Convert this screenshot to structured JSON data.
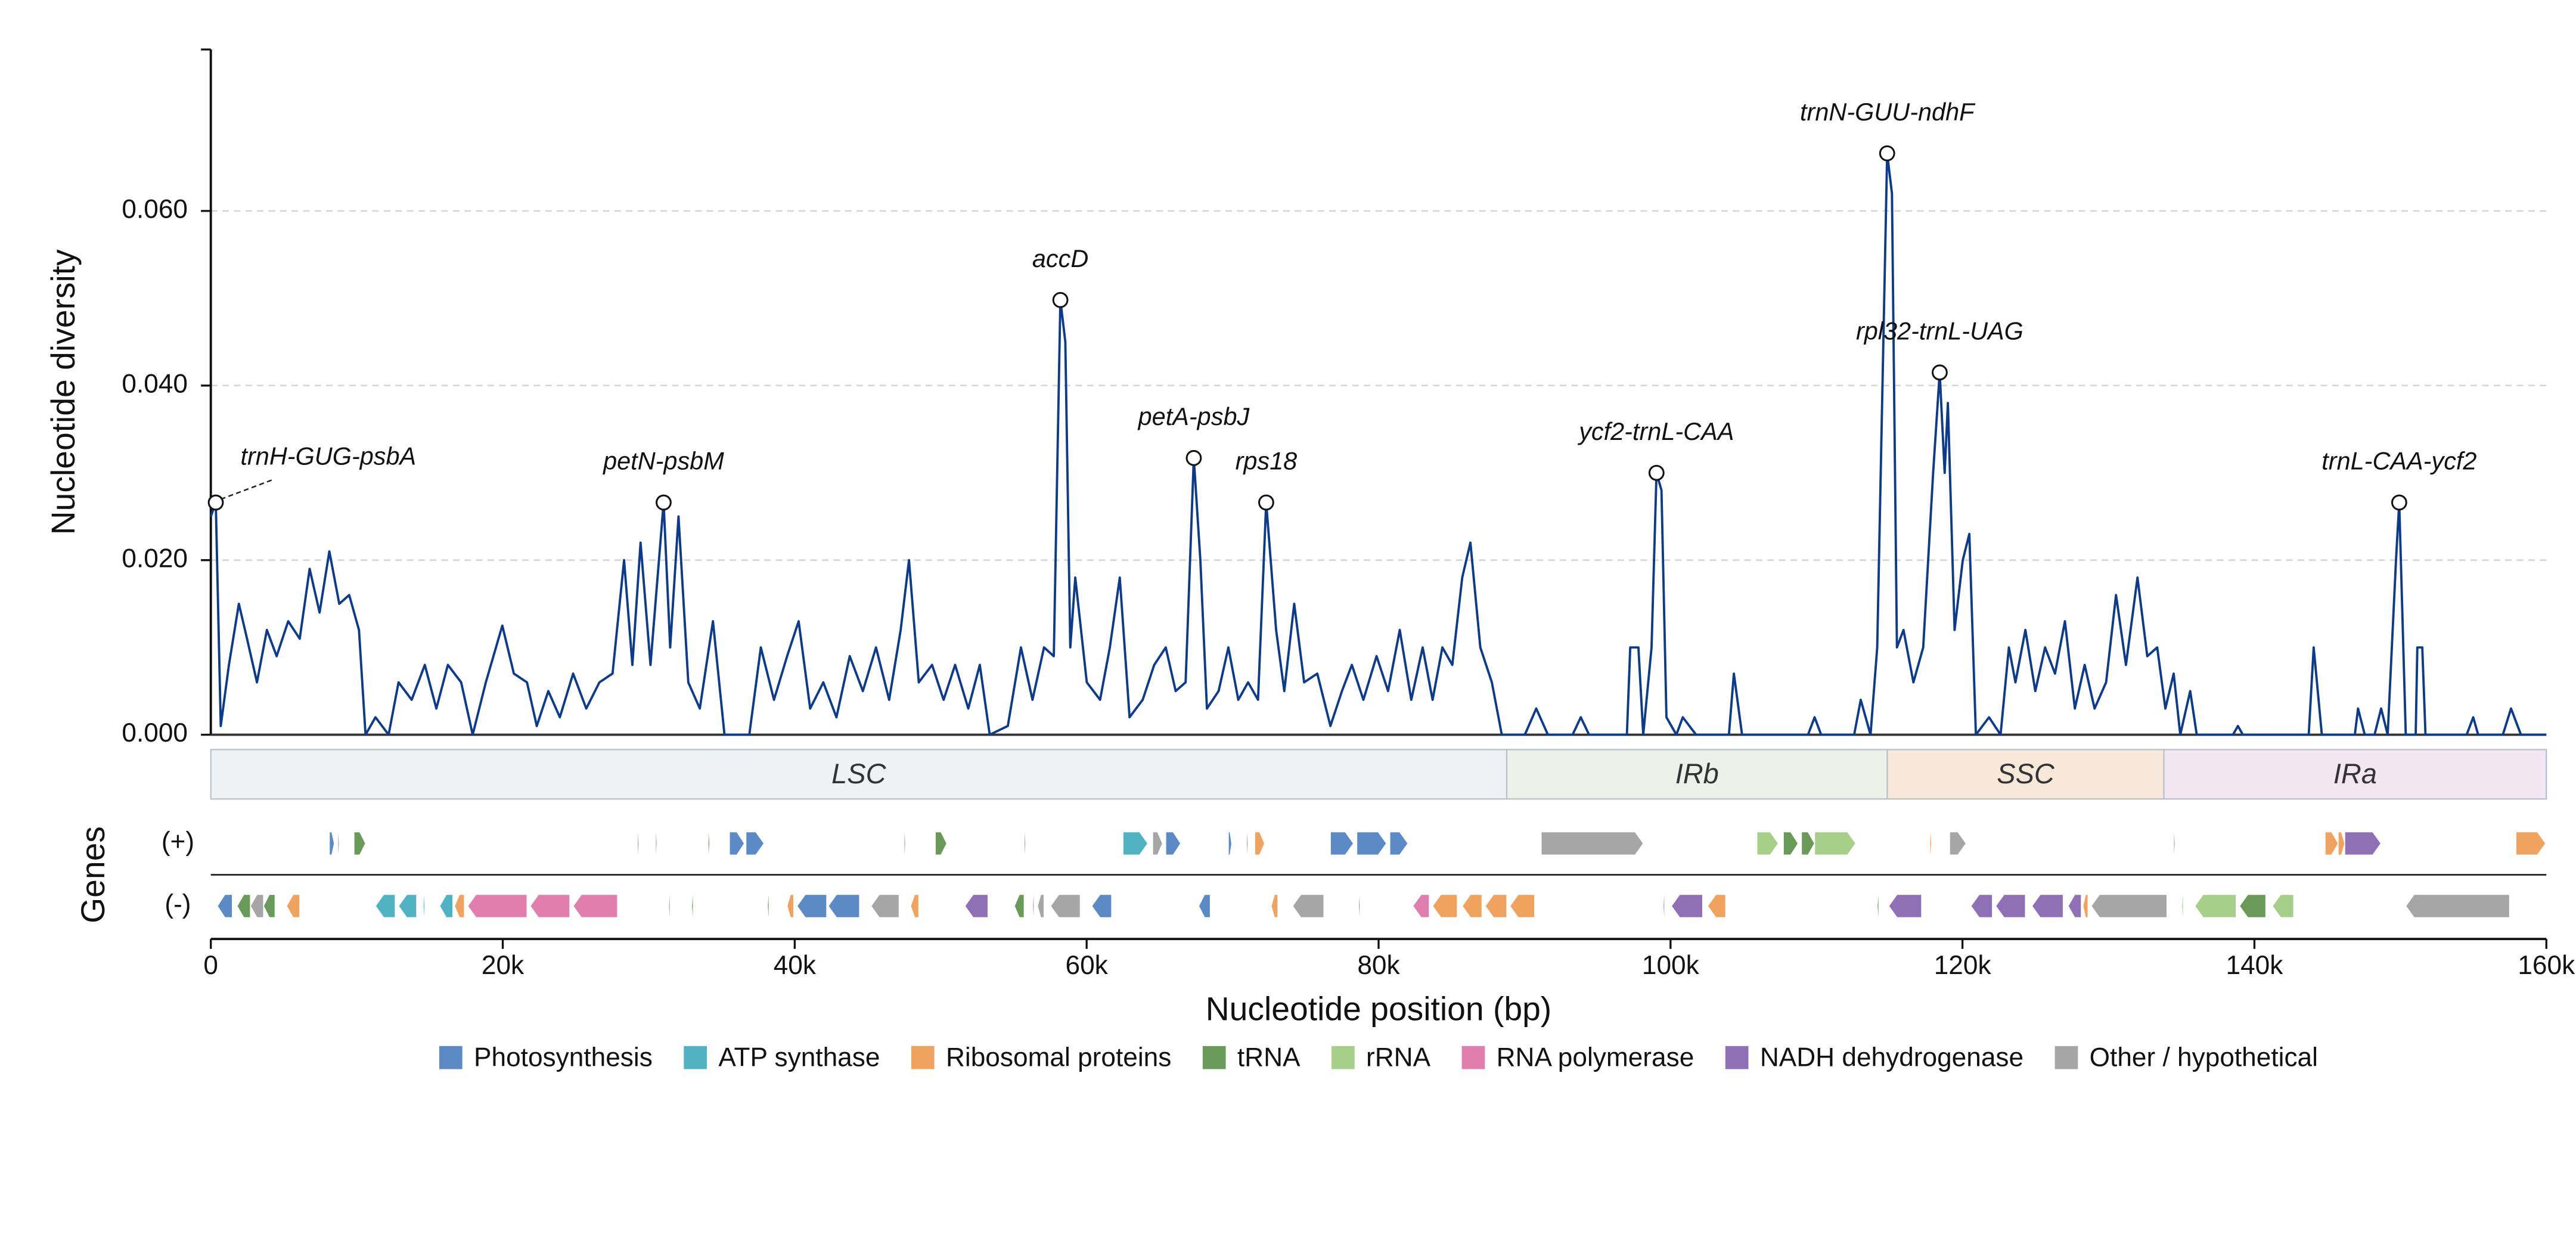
{
  "chart_data": {
    "type": "line",
    "xlabel": "Nucleotide position (bp)",
    "ylabel": "Nucleotide diversity",
    "color": "#0d3b8c",
    "grid": true,
    "xlim": [
      0,
      160000
    ],
    "ylim": [
      0,
      0.0785
    ],
    "xticks": [
      0,
      {
        "value": 20000,
        "label": "20k"
      },
      {
        "value": 40000,
        "label": "40k"
      },
      {
        "value": 60000,
        "label": "60k"
      },
      {
        "value": 80000,
        "label": "80k"
      },
      {
        "value": 100000,
        "label": "100k"
      },
      {
        "value": 120000,
        "label": "120k"
      },
      {
        "value": 140000,
        "label": "140k"
      },
      {
        "value": 160000,
        "label": "160k"
      }
    ],
    "yticks": [
      {
        "value": 0,
        "label": "0.000"
      },
      {
        "value": 0.02,
        "label": "0.020"
      },
      {
        "value": 0.04,
        "label": "0.040"
      },
      {
        "value": 0.06,
        "label": "0.060"
      }
    ],
    "x": [
      0,
      340,
      680,
      1240,
      1920,
      2480,
      3160,
      3840,
      4510,
      5300,
      6090,
      6770,
      7450,
      8120,
      8800,
      9480,
      10150,
      10600,
      11280,
      12180,
      12860,
      13760,
      14660,
      15450,
      16240,
      17150,
      17940,
      18840,
      19970,
      20760,
      21660,
      22330,
      23120,
      23910,
      24820,
      25720,
      26620,
      27520,
      28310,
      28880,
      29440,
      30120,
      31020,
      31470,
      32040,
      32710,
      33500,
      34400,
      35190,
      36890,
      37680,
      38580,
      39480,
      40270,
      41060,
      41960,
      42860,
      43770,
      44670,
      45570,
      46470,
      47260,
      47830,
      48500,
      49410,
      50200,
      50990,
      51890,
      52680,
      53360,
      54600,
      55500,
      56290,
      57080,
      57750,
      58200,
      58540,
      58880,
      59220,
      60010,
      60920,
      61590,
      62270,
      62940,
      63840,
      64630,
      65420,
      66100,
      66780,
      67340,
      67790,
      68240,
      69040,
      69710,
      70390,
      71060,
      71740,
      72300,
      72980,
      73540,
      74220,
      74900,
      75800,
      76700,
      77490,
      78170,
      78960,
      79860,
      80650,
      81450,
      82240,
      83020,
      83700,
      84370,
      85050,
      85730,
      86290,
      86970,
      87760,
      88440,
      89120,
      90020,
      90800,
      91600,
      93290,
      93850,
      94420,
      97010,
      97240,
      97800,
      98130,
      98700,
      99040,
      99380,
      99720,
      100400,
      100840,
      101750,
      104000,
      104340,
      104900,
      109420,
      109870,
      110320,
      112580,
      113030,
      113700,
      114160,
      114840,
      115170,
      115510,
      115960,
      116640,
      117310,
      117990,
      118440,
      118780,
      119000,
      119460,
      120020,
      120470,
      120920,
      121820,
      122610,
      123180,
      123630,
      124310,
      124990,
      125660,
      126340,
      127020,
      127700,
      128370,
      129050,
      129840,
      130520,
      131200,
      131990,
      132660,
      133340,
      133900,
      134470,
      134920,
      135600,
      136050,
      138530,
      138870,
      139210,
      143720,
      144060,
      144620,
      146880,
      147100,
      147560,
      148230,
      148680,
      149130,
      149700,
      149920,
      150370,
      151050,
      151160,
      151500,
      151720,
      154540,
      154990,
      155330,
      157020,
      157580,
      158260,
      160000
    ],
    "values": [
      0.025,
      0.0266,
      0.001,
      0.008,
      0.015,
      0.011,
      0.006,
      0.012,
      0.009,
      0.013,
      0.011,
      0.019,
      0.014,
      0.021,
      0.015,
      0.016,
      0.012,
      0.0,
      0.002,
      0.0,
      0.006,
      0.004,
      0.008,
      0.003,
      0.008,
      0.006,
      0.0,
      0.006,
      0.0125,
      0.007,
      0.006,
      0.001,
      0.005,
      0.002,
      0.007,
      0.003,
      0.006,
      0.007,
      0.02,
      0.008,
      0.022,
      0.008,
      0.0266,
      0.01,
      0.025,
      0.006,
      0.003,
      0.013,
      0.0,
      0.0,
      0.01,
      0.004,
      0.009,
      0.013,
      0.003,
      0.006,
      0.002,
      0.009,
      0.005,
      0.01,
      0.004,
      0.012,
      0.02,
      0.006,
      0.008,
      0.004,
      0.008,
      0.003,
      0.008,
      0.0,
      0.001,
      0.01,
      0.004,
      0.01,
      0.009,
      0.0498,
      0.045,
      0.01,
      0.018,
      0.006,
      0.004,
      0.01,
      0.018,
      0.002,
      0.004,
      0.008,
      0.01,
      0.005,
      0.006,
      0.0317,
      0.02,
      0.003,
      0.005,
      0.01,
      0.004,
      0.006,
      0.004,
      0.0266,
      0.012,
      0.005,
      0.015,
      0.006,
      0.007,
      0.001,
      0.005,
      0.008,
      0.004,
      0.009,
      0.005,
      0.012,
      0.004,
      0.01,
      0.004,
      0.01,
      0.008,
      0.018,
      0.022,
      0.01,
      0.006,
      0.0,
      0.0,
      0.0,
      0.003,
      0.0,
      0.0,
      0.002,
      0.0,
      0.0,
      0.01,
      0.01,
      0.0,
      0.01,
      0.03,
      0.028,
      0.002,
      0.0,
      0.002,
      0.0,
      0.0,
      0.007,
      0.0,
      0.0,
      0.002,
      0.0,
      0.0,
      0.004,
      0.0,
      0.01,
      0.0666,
      0.062,
      0.01,
      0.012,
      0.006,
      0.01,
      0.03,
      0.0415,
      0.03,
      0.038,
      0.012,
      0.02,
      0.023,
      0.0,
      0.002,
      0.0,
      0.01,
      0.006,
      0.012,
      0.005,
      0.01,
      0.007,
      0.013,
      0.003,
      0.008,
      0.003,
      0.006,
      0.016,
      0.008,
      0.018,
      0.009,
      0.01,
      0.003,
      0.007,
      0.0,
      0.005,
      0.0,
      0.0,
      0.001,
      0.0,
      0.0,
      0.01,
      0.0,
      0.0,
      0.003,
      0.0,
      0.0,
      0.003,
      0.0,
      0.02,
      0.0266,
      0.0,
      0.0,
      0.01,
      0.01,
      0.0,
      0.0,
      0.002,
      0.0,
      0.0,
      0.003,
      0.0,
      0.0
    ],
    "annotations": [
      {
        "text": "trnH-GUG-psbA",
        "x": 340,
        "y": 0.0266
      },
      {
        "text": "petN-psbM",
        "x": 31020,
        "y": 0.0266
      },
      {
        "text": "accD",
        "x": 58200,
        "y": 0.0498
      },
      {
        "text": "petA-psbJ",
        "x": 67340,
        "y": 0.0317
      },
      {
        "text": "rps18",
        "x": 72300,
        "y": 0.0266
      },
      {
        "text": "ycf2-trnL-CAA",
        "x": 99040,
        "y": 0.03
      },
      {
        "text": "trnN-GUU-ndhF",
        "x": 114840,
        "y": 0.0666
      },
      {
        "text": "rpl32-trnL-UAG",
        "x": 118440,
        "y": 0.0415
      },
      {
        "text": "trnL-CAA-ycf2",
        "x": 149920,
        "y": 0.0266
      }
    ],
    "regions": [
      {
        "name": "LSC",
        "start": 0,
        "end": 88780,
        "color": "#eef2f5"
      },
      {
        "name": "IRb",
        "start": 88780,
        "end": 114850,
        "color": "#ecf2ea"
      },
      {
        "name": "SSC",
        "start": 114850,
        "end": 133800,
        "color": "#f8e8da"
      },
      {
        "name": "IRa",
        "start": 133800,
        "end": 160000,
        "color": "#f1e6f1"
      }
    ],
    "genes_label": "Genes",
    "gene_categories": [
      {
        "name": "Photosynthesis",
        "color": "#5b8ac6"
      },
      {
        "name": "ATP synthase",
        "color": "#4fb3c4"
      },
      {
        "name": "Ribosomal proteins",
        "color": "#f0a35e"
      },
      {
        "name": "tRNA",
        "color": "#6a9a58"
      },
      {
        "name": "rRNA",
        "color": "#a8cf8a"
      },
      {
        "name": "RNA polymerase",
        "color": "#e07fae"
      },
      {
        "name": "NADH dehydrogenase",
        "color": "#8d70b5"
      },
      {
        "name": "Other / hypothetical",
        "color": "#a6a6a6"
      }
    ],
    "tracks": [
      {
        "label": "(+)",
        "genes": [
          {
            "start": 8120,
            "end": 8460,
            "category": "Photosynthesis"
          },
          {
            "start": 8690,
            "end": 8800,
            "category": "Other / hypothetical"
          },
          {
            "start": 9810,
            "end": 10600,
            "category": "tRNA"
          },
          {
            "start": 29220,
            "end": 29330,
            "category": "Other / hypothetical"
          },
          {
            "start": 30460,
            "end": 30570,
            "category": "Other / hypothetical"
          },
          {
            "start": 34070,
            "end": 34180,
            "category": "tRNA"
          },
          {
            "start": 35530,
            "end": 36550,
            "category": "Photosynthesis"
          },
          {
            "start": 36660,
            "end": 37900,
            "category": "Photosynthesis"
          },
          {
            "start": 47490,
            "end": 47600,
            "category": "Other / hypothetical"
          },
          {
            "start": 49630,
            "end": 50420,
            "category": "tRNA"
          },
          {
            "start": 55720,
            "end": 55830,
            "category": "Other / hypothetical"
          },
          {
            "start": 62490,
            "end": 64190,
            "category": "ATP synthase"
          },
          {
            "start": 64520,
            "end": 65200,
            "category": "Other / hypothetical"
          },
          {
            "start": 65420,
            "end": 66440,
            "category": "Photosynthesis"
          },
          {
            "start": 69710,
            "end": 69940,
            "category": "Photosynthesis"
          },
          {
            "start": 70950,
            "end": 71060,
            "category": "Other / hypothetical"
          },
          {
            "start": 71520,
            "end": 72190,
            "category": "Ribosomal proteins"
          },
          {
            "start": 76700,
            "end": 78280,
            "category": "Photosynthesis"
          },
          {
            "start": 78510,
            "end": 80540,
            "category": "Photosynthesis"
          },
          {
            "start": 80770,
            "end": 82010,
            "category": "Photosynthesis"
          },
          {
            "start": 91140,
            "end": 98140,
            "category": "Other / hypothetical"
          },
          {
            "start": 105920,
            "end": 107390,
            "category": "rRNA"
          },
          {
            "start": 107730,
            "end": 108740,
            "category": "tRNA"
          },
          {
            "start": 108970,
            "end": 109870,
            "category": "tRNA"
          },
          {
            "start": 109870,
            "end": 112690,
            "category": "rRNA"
          },
          {
            "start": 117770,
            "end": 117890,
            "category": "Ribosomal proteins"
          },
          {
            "start": 119120,
            "end": 120250,
            "category": "Other / hypothetical"
          },
          {
            "start": 134460,
            "end": 134570,
            "category": "Other / hypothetical"
          },
          {
            "start": 144840,
            "end": 145740,
            "category": "Ribosomal proteins"
          },
          {
            "start": 145740,
            "end": 146190,
            "category": "Ribosomal proteins"
          },
          {
            "start": 146190,
            "end": 148670,
            "category": "NADH dehydrogenase"
          },
          {
            "start": 157920,
            "end": 159950,
            "category": "Ribosomal proteins"
          }
        ]
      },
      {
        "label": "(-)",
        "genes": [
          {
            "start": 450,
            "end": 1470,
            "category": "Photosynthesis"
          },
          {
            "start": 1800,
            "end": 2710,
            "category": "tRNA"
          },
          {
            "start": 2710,
            "end": 3610,
            "category": "Other / hypothetical"
          },
          {
            "start": 3610,
            "end": 4400,
            "category": "tRNA"
          },
          {
            "start": 5190,
            "end": 6090,
            "category": "Ribosomal proteins"
          },
          {
            "start": 11280,
            "end": 12630,
            "category": "ATP synthase"
          },
          {
            "start": 12860,
            "end": 14100,
            "category": "ATP synthase"
          },
          {
            "start": 14550,
            "end": 14660,
            "category": "ATP synthase"
          },
          {
            "start": 15680,
            "end": 16580,
            "category": "ATP synthase"
          },
          {
            "start": 16690,
            "end": 17370,
            "category": "Ribosomal proteins"
          },
          {
            "start": 17600,
            "end": 21660,
            "category": "RNA polymerase"
          },
          {
            "start": 21880,
            "end": 24590,
            "category": "RNA polymerase"
          },
          {
            "start": 24820,
            "end": 27860,
            "category": "RNA polymerase"
          },
          {
            "start": 31360,
            "end": 31470,
            "category": "Other / hypothetical"
          },
          {
            "start": 32940,
            "end": 33050,
            "category": "tRNA"
          },
          {
            "start": 38130,
            "end": 38240,
            "category": "tRNA"
          },
          {
            "start": 39480,
            "end": 39930,
            "category": "Ribosomal proteins"
          },
          {
            "start": 40160,
            "end": 42190,
            "category": "Photosynthesis"
          },
          {
            "start": 42300,
            "end": 44440,
            "category": "Photosynthesis"
          },
          {
            "start": 45230,
            "end": 47150,
            "category": "Other / hypothetical"
          },
          {
            "start": 47940,
            "end": 48500,
            "category": "Ribosomal proteins"
          },
          {
            "start": 51660,
            "end": 53240,
            "category": "NADH dehydrogenase"
          },
          {
            "start": 55050,
            "end": 55720,
            "category": "tRNA"
          },
          {
            "start": 56290,
            "end": 56400,
            "category": "Other / hypothetical"
          },
          {
            "start": 56630,
            "end": 57080,
            "category": "Other / hypothetical"
          },
          {
            "start": 57530,
            "end": 59560,
            "category": "Other / hypothetical"
          },
          {
            "start": 60350,
            "end": 61710,
            "category": "Photosynthesis"
          },
          {
            "start": 67680,
            "end": 68470,
            "category": "Photosynthesis"
          },
          {
            "start": 72640,
            "end": 73100,
            "category": "Ribosomal proteins"
          },
          {
            "start": 74110,
            "end": 76250,
            "category": "Other / hypothetical"
          },
          {
            "start": 78620,
            "end": 78730,
            "category": "Other / hypothetical"
          },
          {
            "start": 82350,
            "end": 83470,
            "category": "RNA polymerase"
          },
          {
            "start": 83700,
            "end": 85390,
            "category": "Ribosomal proteins"
          },
          {
            "start": 85730,
            "end": 87080,
            "category": "Ribosomal proteins"
          },
          {
            "start": 87310,
            "end": 88780,
            "category": "Ribosomal proteins"
          },
          {
            "start": 89000,
            "end": 90690,
            "category": "Ribosomal proteins"
          },
          {
            "start": 99490,
            "end": 99600,
            "category": "Other / hypothetical"
          },
          {
            "start": 100060,
            "end": 102200,
            "category": "NADH dehydrogenase"
          },
          {
            "start": 102540,
            "end": 103780,
            "category": "Ribosomal proteins"
          },
          {
            "start": 114160,
            "end": 114270,
            "category": "tRNA"
          },
          {
            "start": 114950,
            "end": 117200,
            "category": "NADH dehydrogenase"
          },
          {
            "start": 120580,
            "end": 122050,
            "category": "NADH dehydrogenase"
          },
          {
            "start": 122280,
            "end": 124310,
            "category": "NADH dehydrogenase"
          },
          {
            "start": 124760,
            "end": 126900,
            "category": "NADH dehydrogenase"
          },
          {
            "start": 127240,
            "end": 128140,
            "category": "NADH dehydrogenase"
          },
          {
            "start": 128250,
            "end": 128600,
            "category": "Ribosomal proteins"
          },
          {
            "start": 128820,
            "end": 134010,
            "category": "Other / hypothetical"
          },
          {
            "start": 135020,
            "end": 135130,
            "category": "rRNA"
          },
          {
            "start": 135920,
            "end": 138750,
            "category": "rRNA"
          },
          {
            "start": 138980,
            "end": 140780,
            "category": "tRNA"
          },
          {
            "start": 141230,
            "end": 142690,
            "category": "rRNA"
          },
          {
            "start": 150370,
            "end": 157480,
            "category": "Other / hypothetical"
          }
        ]
      }
    ]
  }
}
